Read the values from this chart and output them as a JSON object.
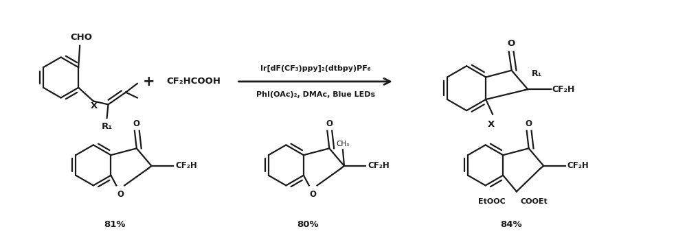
{
  "background_color": "#ffffff",
  "line_color": "#1a1a1a",
  "text_color": "#1a1a1a",
  "arrow_above": "Ir[dF(CF₃)ppy]₂(dtbpy)PF₆",
  "arrow_below": "PhI(OAc)₂, DMAc, Blue LEDs",
  "reagent": "CF₂HCOOH",
  "cho_label": "CHO",
  "x_label": "X",
  "r1_label": "R₁",
  "o_label": "O",
  "cf2h_label": "CF₂H",
  "etooc_label": "EtOOC",
  "cooet_label": "COOEt",
  "yields": [
    "81%",
    "80%",
    "84%"
  ],
  "figsize": [
    10.0,
    3.5
  ],
  "dpi": 100
}
